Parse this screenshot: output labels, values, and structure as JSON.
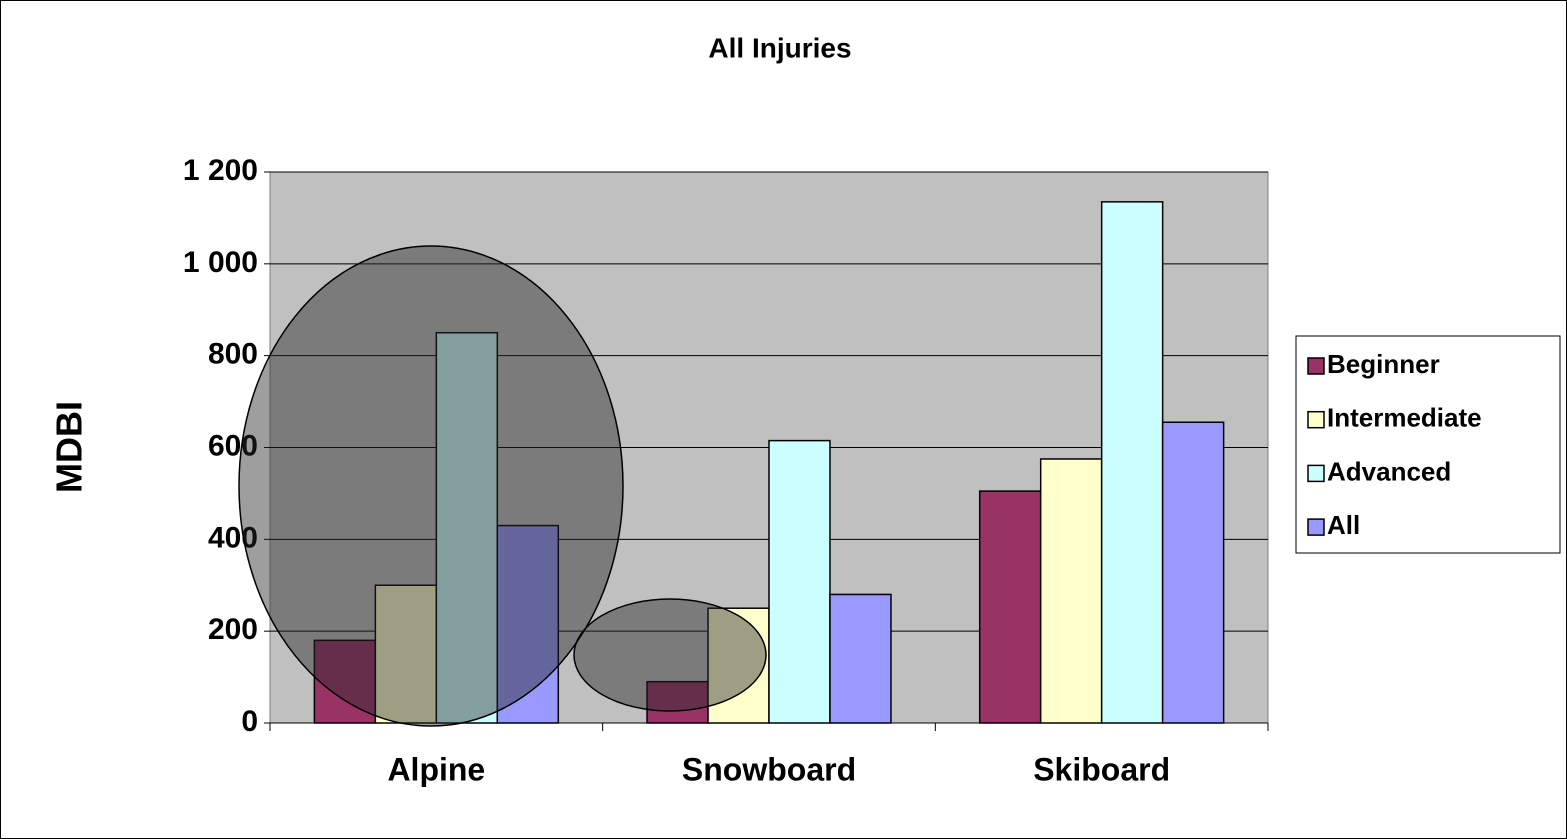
{
  "chart_data": {
    "type": "bar",
    "title": "All Injuries",
    "y_label": "MDBI",
    "categories": [
      "Alpine",
      "Snowboard",
      "Skiboard"
    ],
    "series": [
      {
        "name": "Beginner",
        "color": "#993366",
        "values": [
          180,
          90,
          505
        ]
      },
      {
        "name": "Intermediate",
        "color": "#FFFFCC",
        "values": [
          300,
          250,
          575
        ]
      },
      {
        "name": "Advanced",
        "color": "#CCFFFF",
        "values": [
          850,
          615,
          1135
        ]
      },
      {
        "name": "All",
        "color": "#9999FF",
        "values": [
          430,
          280,
          655
        ]
      }
    ],
    "ylim": [
      0,
      1200
    ],
    "yticks": [
      0,
      200,
      400,
      600,
      800,
      {
        "value": 1000,
        "label": "1 000"
      },
      {
        "value": 1200,
        "label": "1 200"
      }
    ],
    "grid": true,
    "legend": "right",
    "plot_background": "#C0C0C0"
  }
}
